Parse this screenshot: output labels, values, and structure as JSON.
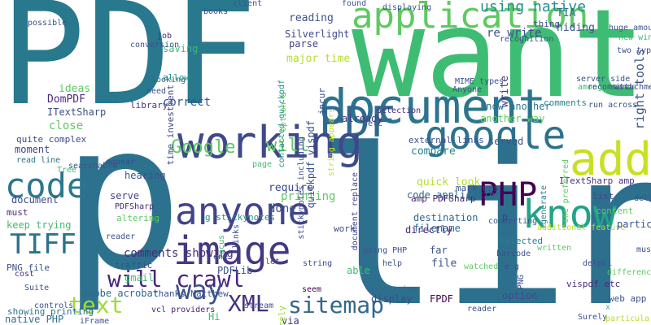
{
  "words": [
    {
      "text": "PDF",
      "color": "#28788e"
    },
    {
      "text": "p",
      "color": "#2c728e"
    },
    {
      "text": "line",
      "color": "#2d708e"
    },
    {
      "text": "want",
      "color": "#3fbc73"
    },
    {
      "text": "document",
      "color": "#2b758e"
    },
    {
      "text": "application",
      "color": "#5ec962"
    },
    {
      "text": "PDF",
      "color": "#31688e"
    },
    {
      "text": "google",
      "color": "#2c728e"
    },
    {
      "text": "know",
      "color": "#20a486"
    },
    {
      "text": "add",
      "color": "#c8e020"
    },
    {
      "text": "working",
      "color": "#3e4989"
    },
    {
      "text": "anyone",
      "color": "#414487"
    },
    {
      "text": "image",
      "color": "#443983"
    },
    {
      "text": "code",
      "color": "#2a788e"
    },
    {
      "text": "PHP",
      "color": "#440154"
    },
    {
      "text": "TIFF",
      "color": "#2c728e"
    },
    {
      "text": "will crawl",
      "color": "#482878"
    },
    {
      "text": "text",
      "color": "#a0da39"
    },
    {
      "text": "way",
      "color": "#3b528b"
    },
    {
      "text": "XML",
      "color": "#46327e"
    },
    {
      "text": "sitemap",
      "color": "#31688e"
    },
    {
      "text": "Google",
      "color": "#5ec962"
    },
    {
      "text": "will",
      "color": "#5ec962"
    },
    {
      "text": "using native",
      "color": "#21918c"
    },
    {
      "text": "re write",
      "color": "#3b528b"
    },
    {
      "text": "TIA",
      "color": "#2c728e"
    },
    {
      "text": "hiding",
      "color": "#3b528b"
    },
    {
      "text": "right tools",
      "color": "#3b528b"
    },
    {
      "text": "Silverlight",
      "color": "#3e4989"
    },
    {
      "text": "major time",
      "color": "#b5de2b"
    },
    {
      "text": "parse",
      "color": "#414487"
    },
    {
      "text": "reading",
      "color": "#3b528b"
    },
    {
      "text": "know another",
      "color": "#2c728e"
    },
    {
      "text": "comments",
      "color": "#26828e"
    },
    {
      "text": "selection",
      "color": "#482878"
    },
    {
      "text": "another way",
      "color": "#5ec962"
    },
    {
      "text": "write",
      "color": "#443983"
    },
    {
      "text": "served",
      "color": "#3b528b"
    },
    {
      "text": "external links",
      "color": "#3b528b"
    },
    {
      "text": "quick look",
      "color": "#b5de2b"
    },
    {
      "text": "amp PDFSharp",
      "color": "#481f70"
    },
    {
      "text": "destination",
      "color": "#31688e"
    },
    {
      "text": "filename",
      "color": "#31688e"
    },
    {
      "text": "p",
      "color": "#443983"
    },
    {
      "text": "ITextSharp amp",
      "color": "#46327e"
    },
    {
      "text": "list",
      "color": "#3e4989"
    },
    {
      "text": "content",
      "color": "#5ec962"
    },
    {
      "text": "directly",
      "color": "#482878"
    },
    {
      "text": "additional feature",
      "color": "#b5de2b"
    },
    {
      "text": "code application",
      "color": "#31688e"
    },
    {
      "text": "ideas",
      "color": "#5ec962"
    },
    {
      "text": "DomPDF",
      "color": "#472d7b"
    },
    {
      "text": "ITextSharp",
      "color": "#3b528b"
    },
    {
      "text": "close",
      "color": "#5ec962"
    },
    {
      "text": "quite complex",
      "color": "#3e4989"
    },
    {
      "text": "moment",
      "color": "#3e4989"
    },
    {
      "text": "read line",
      "color": "#2c728e"
    },
    {
      "text": "document",
      "color": "#3e4989"
    },
    {
      "text": "must",
      "color": "#472d7b"
    },
    {
      "text": "keep trying",
      "color": "#3fbc73"
    },
    {
      "text": "PNG file",
      "color": "#3b528b"
    },
    {
      "text": "cost",
      "color": "#46327e"
    },
    {
      "text": "showing printing",
      "color": "#2c728e"
    },
    {
      "text": "native PHP",
      "color": "#2c728e"
    },
    {
      "text": "comments showing",
      "color": "#472d7b"
    },
    {
      "text": "traffic",
      "color": "#3b528b"
    },
    {
      "text": "serve",
      "color": "#414487"
    },
    {
      "text": "PDFSharp",
      "color": "#482878"
    },
    {
      "text": "altering",
      "color": "#5ec962"
    },
    {
      "text": "library",
      "color": "#443983"
    },
    {
      "text": "saving",
      "color": "#3fbc73"
    },
    {
      "text": "allow",
      "color": "#21918c"
    },
    {
      "text": "time investment",
      "color": "#3e4989"
    },
    {
      "text": "job",
      "color": "#46327e"
    },
    {
      "text": "looking",
      "color": "#31688e"
    },
    {
      "text": "correct",
      "color": "#3b528b"
    },
    {
      "text": "already",
      "color": "#443983"
    },
    {
      "text": "compare",
      "color": "#26828e"
    },
    {
      "text": "mark ups",
      "color": "#3b528b"
    },
    {
      "text": "work",
      "color": "#3e4989"
    },
    {
      "text": "using PHP",
      "color": "#3b528b"
    },
    {
      "text": "able",
      "color": "#3fbc73"
    },
    {
      "text": "far",
      "color": "#3b528b"
    },
    {
      "text": "file",
      "color": "#3b528b"
    },
    {
      "text": "FPDF",
      "color": "#440154"
    },
    {
      "text": "display",
      "color": "#3e4989"
    },
    {
      "text": "docs using",
      "color": "#31688e"
    },
    {
      "text": "string",
      "color": "#3e4989"
    },
    {
      "text": "seem",
      "color": "#440154"
    },
    {
      "text": "printing",
      "color": "#5ec962"
    },
    {
      "text": "require",
      "color": "#3e4989"
    },
    {
      "text": "done",
      "color": "#3b528b"
    },
    {
      "text": "via",
      "color": "#46327e"
    },
    {
      "text": "Surely",
      "color": "#a0da39"
    },
    {
      "text": "PDFLib",
      "color": "#3b528b"
    },
    {
      "text": "Hi",
      "color": "#3fbc73"
    },
    {
      "text": "thanks Matthew",
      "color": "#3b528b"
    },
    {
      "text": "vcl providers",
      "color": "#481f70"
    },
    {
      "text": "hearing",
      "color": "#3b528b"
    },
    {
      "text": "appear",
      "color": "#3e4989"
    },
    {
      "text": "gmail",
      "color": "#3fbc73"
    },
    {
      "text": "adobe acrobat",
      "color": "#31688e"
    },
    {
      "text": "g stickynotes",
      "color": "#21918c"
    },
    {
      "text": "focus",
      "color": "#3fbc73"
    },
    {
      "text": "links",
      "color": "#3b528b"
    },
    {
      "text": "one",
      "color": "#3b528b"
    },
    {
      "text": "incur",
      "color": "#3e4989"
    },
    {
      "text": "quickpdf vispdf",
      "color": "#3b528b"
    },
    {
      "text": "string appears",
      "color": "#c8e020"
    },
    {
      "text": "document replace",
      "color": "#414487"
    },
    {
      "text": "stickynotes including",
      "color": "#3e4989"
    },
    {
      "text": "contacted quickpdf",
      "color": "#21918c"
    },
    {
      "text": "option e",
      "color": "#5ec962"
    },
    {
      "text": "etc",
      "color": "#3b528b"
    },
    {
      "text": "watched",
      "color": "#5ec962"
    },
    {
      "text": "selected",
      "color": "#26828e"
    },
    {
      "text": "e g",
      "color": "#3e4989"
    },
    {
      "text": "option",
      "color": "#3e4989"
    },
    {
      "text": "PNG",
      "color": "#3b528b"
    },
    {
      "text": "written",
      "color": "#5ec962"
    },
    {
      "text": "generate",
      "color": "#26828e"
    },
    {
      "text": "one preferred",
      "color": "#5ec962"
    },
    {
      "text": "vispdf etc",
      "color": "#472d7b"
    },
    {
      "text": "delphi",
      "color": "#3b528b"
    },
    {
      "text": "difference",
      "color": "#5ec962"
    },
    {
      "text": "web app",
      "color": "#3b528b"
    },
    {
      "text": "x",
      "color": "#3fbc73"
    },
    {
      "text": "particularly interested",
      "color": "#b5de2b"
    },
    {
      "text": "particular page",
      "color": "#3b528b"
    },
    {
      "text": "deliver huge",
      "color": "#3b528b"
    },
    {
      "text": "must deliver",
      "color": "#3b528b"
    },
    {
      "text": "among others",
      "color": "#3fbc73"
    },
    {
      "text": "run across",
      "color": "#3b528b"
    },
    {
      "text": "server side",
      "color": "#3b528b"
    },
    {
      "text": "recommend",
      "color": "#3b528b"
    },
    {
      "text": "attachments",
      "color": "#3e4989"
    },
    {
      "text": "two types",
      "color": "#3b528b"
    },
    {
      "text": "new window",
      "color": "#3fbc73"
    },
    {
      "text": "huge amounts",
      "color": "#3b528b"
    },
    {
      "text": "thing",
      "color": "#3b528b"
    },
    {
      "text": "recognition",
      "color": "#3b528b"
    },
    {
      "text": "displaying",
      "color": "#3b528b"
    },
    {
      "text": "Anyone",
      "color": "#3b528b"
    },
    {
      "text": "MIME types",
      "color": "#3b528b"
    },
    {
      "text": "client",
      "color": "#3b528b"
    },
    {
      "text": "found",
      "color": "#3b528b"
    },
    {
      "text": "conversion",
      "color": "#3b528b"
    },
    {
      "text": "Tree",
      "color": "#3fbc73"
    },
    {
      "text": "searchable",
      "color": "#3b528b"
    },
    {
      "text": "possible",
      "color": "#3b528b"
    },
    {
      "text": "Suite",
      "color": "#3b528b"
    },
    {
      "text": "controls",
      "color": "#3b528b"
    },
    {
      "text": "need",
      "color": "#3b528b"
    },
    {
      "text": "books",
      "color": "#3b528b"
    },
    {
      "text": "reader",
      "color": "#3b528b"
    },
    {
      "text": "iFrame",
      "color": "#3b528b"
    },
    {
      "text": "stream",
      "color": "#3b528b"
    },
    {
      "text": "help",
      "color": "#3b528b"
    },
    {
      "text": "page",
      "color": "#3fbc73"
    },
    {
      "text": "let",
      "color": "#3b528b"
    },
    {
      "text": "converting",
      "color": "#3b528b"
    },
    {
      "text": "barcode",
      "color": "#3b528b"
    },
    {
      "text": "reader",
      "color": "#3b528b"
    },
    {
      "text": "Surely",
      "color": "#3b528b"
    }
  ]
}
